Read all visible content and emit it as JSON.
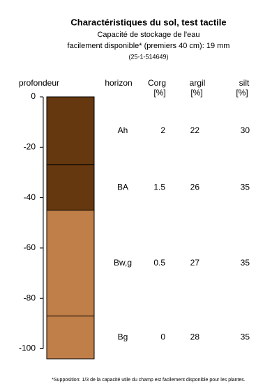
{
  "chart_data": {
    "type": "soil-profile",
    "title": "Charactéristiques du sol, test tactile",
    "subtitle": [
      "Capacité de stockage de l'eau",
      "facilement disponible* (premiers 40 cm): 19 mm",
      "(25-1-514649)"
    ],
    "y_label": "profondeur",
    "columns": [
      {
        "label": "horizon"
      },
      {
        "label": "Corg",
        "unit": "[%]"
      },
      {
        "label": "argil",
        "unit": "[%]"
      },
      {
        "label": "silt",
        "unit": "[%]"
      }
    ],
    "ylim": [
      -104,
      0
    ],
    "yticks": [
      0,
      -20,
      -40,
      -60,
      -80,
      -100
    ],
    "horizons": [
      {
        "name": "Ah",
        "top": 0,
        "bottom": -27,
        "color": "#66380f",
        "corg": 2,
        "argil": 22,
        "silt": 30
      },
      {
        "name": "BA",
        "top": -27,
        "bottom": -45,
        "color": "#66380f",
        "corg": 1.5,
        "argil": 26,
        "silt": 35
      },
      {
        "name": "Bw,g",
        "top": -45,
        "bottom": -87,
        "color": "#c07e48",
        "corg": 0.5,
        "argil": 27,
        "silt": 35
      },
      {
        "name": "Bg",
        "top": -87,
        "bottom": -104,
        "color": "#c07e48",
        "corg": 0,
        "argil": 28,
        "silt": 35
      }
    ],
    "note": "*Supposition: 1/3 de la capacité utile du champ est facilement disponible pour les plantes."
  }
}
